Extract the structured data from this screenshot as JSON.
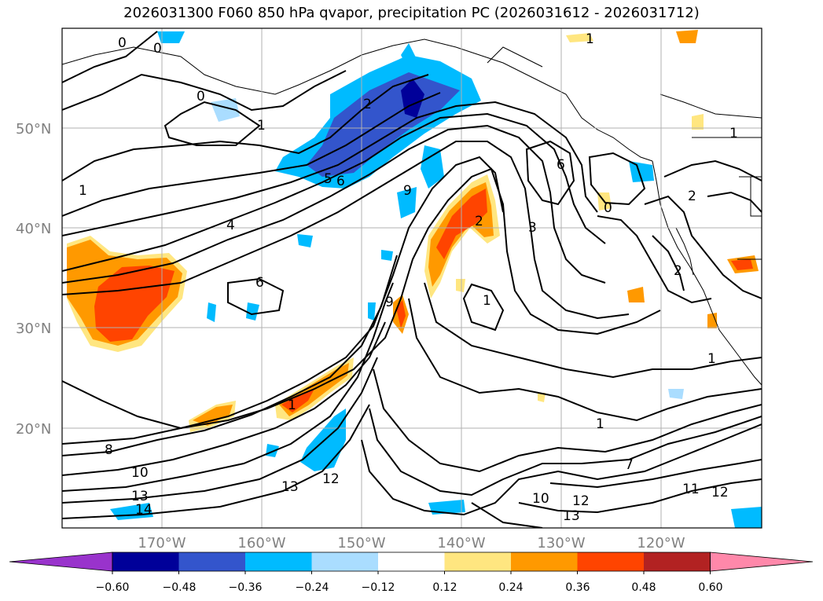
{
  "map": {
    "title": "2026031300 F060 850 hPa qvapor, precipitation PC (2026031612 - 2026031712)",
    "lat_labels": [
      "50°N",
      "40°N",
      "30°N",
      "20°N"
    ],
    "lon_labels": [
      "170°W",
      "160°W",
      "150°W",
      "140°W",
      "130°W",
      "120°W"
    ],
    "contour_labels": [
      "0",
      "0",
      "0",
      "1",
      "1",
      "2",
      "5",
      "6",
      "9",
      "4",
      "6",
      "1",
      "8",
      "10",
      "13",
      "14",
      "13",
      "12",
      "2",
      "3",
      "1",
      "9",
      "1",
      "6",
      "0",
      "2",
      "1",
      "1",
      "10",
      "12",
      "13",
      "7",
      "11",
      "12",
      "2",
      "1"
    ]
  },
  "colorbar": {
    "ticks": [
      "−0.60",
      "−0.48",
      "−0.36",
      "−0.24",
      "−0.12",
      "0.12",
      "0.24",
      "0.36",
      "0.48",
      "0.60"
    ],
    "colors": [
      "#9933cc",
      "#000099",
      "#3355cc",
      "#00bbff",
      "#aaddff",
      "#ffffff",
      "#ffe680",
      "#ff9900",
      "#ff4400",
      "#b22222",
      "#ff88aa"
    ]
  }
}
